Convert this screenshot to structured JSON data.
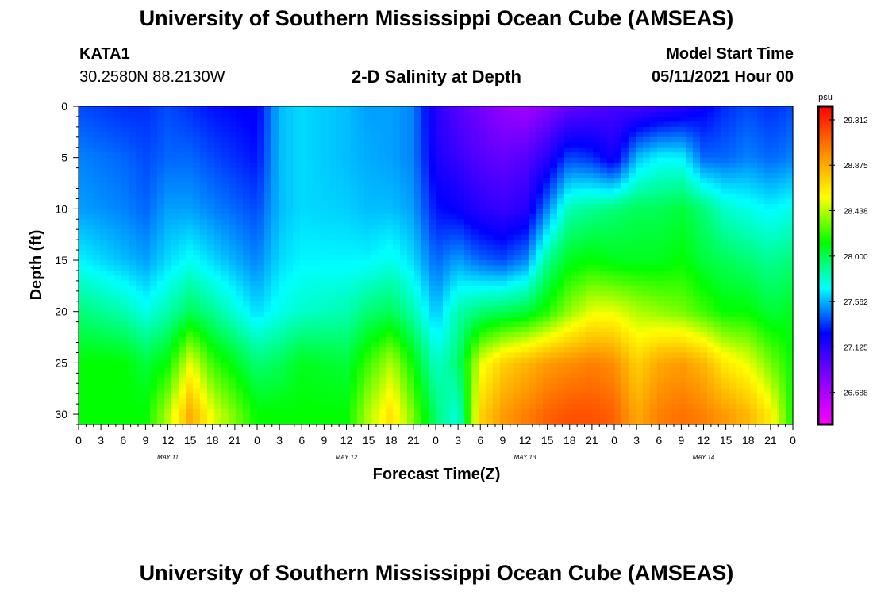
{
  "header": {
    "title": "University of Southern Mississippi Ocean Cube (AMSEAS)",
    "station_id": "KATA1",
    "coords": "30.2580N  88.2130W",
    "plot_title": "2-D Salinity at Depth",
    "model_start_label": "Model Start Time",
    "model_start_value": "05/11/2021 Hour 00"
  },
  "footer": {
    "title": "University of Southern Mississippi Ocean Cube (AMSEAS)"
  },
  "chart_data": {
    "type": "heatmap",
    "xlabel": "Forecast Time(Z)",
    "ylabel": "Depth (ft)",
    "x_range_hours": [
      0,
      96
    ],
    "x_tick_step_hours": 3,
    "x_tick_labels": [
      "0",
      "3",
      "6",
      "9",
      "12",
      "15",
      "18",
      "21",
      "0",
      "3",
      "6",
      "9",
      "12",
      "15",
      "18",
      "21",
      "0",
      "3",
      "6",
      "9",
      "12",
      "15",
      "18",
      "21",
      "0",
      "3",
      "6",
      "9",
      "12",
      "15",
      "18",
      "21",
      "0"
    ],
    "day_labels": [
      "MAY 11",
      "MAY 12",
      "MAY 13",
      "MAY 14"
    ],
    "y_range_ft": [
      0,
      31
    ],
    "y_ticks": [
      0,
      5,
      10,
      15,
      20,
      25,
      30
    ],
    "y_inverted": true,
    "colorbar": {
      "unit": "psu",
      "min": 26.25,
      "max": 29.312,
      "tick_values": [
        29.312,
        28.875,
        28.438,
        28.0,
        27.562,
        27.125,
        26.688
      ],
      "tick_labels": [
        "29.312",
        "28.875",
        "28.438",
        "28.000",
        "27.562",
        "27.125",
        "26.688"
      ],
      "colors": [
        "#ff00ff",
        "#8800ff",
        "#0000ff",
        "#00ffff",
        "#00ff00",
        "#ffff00",
        "#ff8800",
        "#ff0000"
      ]
    },
    "field_hours": [
      0,
      6,
      9,
      12,
      15,
      18,
      24,
      27,
      30,
      36,
      39,
      42,
      45,
      48,
      51,
      54,
      57,
      60,
      63,
      66,
      69,
      72,
      75,
      78,
      81,
      84,
      87,
      90,
      93,
      96
    ],
    "field_depths_ft": [
      0,
      5,
      10,
      15,
      20,
      25,
      30
    ],
    "field_values_psu": [
      [
        27.25,
        27.35,
        27.4,
        27.55,
        27.8,
        28.0,
        28.0
      ],
      [
        27.2,
        27.3,
        27.35,
        27.45,
        27.7,
        28.0,
        28.0
      ],
      [
        27.2,
        27.25,
        27.3,
        27.4,
        27.6,
        27.9,
        28.0
      ],
      [
        27.25,
        27.3,
        27.4,
        27.5,
        27.7,
        28.0,
        28.3
      ],
      [
        27.2,
        27.3,
        27.4,
        27.58,
        27.85,
        28.4,
        28.75
      ],
      [
        27.15,
        27.25,
        27.35,
        27.5,
        27.75,
        28.1,
        28.4
      ],
      [
        27.1,
        27.15,
        27.25,
        27.35,
        27.5,
        27.8,
        28.0
      ],
      [
        27.45,
        27.45,
        27.45,
        27.5,
        27.6,
        27.85,
        28.0
      ],
      [
        27.5,
        27.5,
        27.5,
        27.55,
        27.65,
        27.95,
        28.0
      ],
      [
        27.45,
        27.45,
        27.48,
        27.55,
        27.7,
        27.9,
        28.0
      ],
      [
        27.4,
        27.42,
        27.45,
        27.55,
        27.8,
        28.1,
        28.3
      ],
      [
        27.4,
        27.4,
        27.45,
        27.6,
        27.85,
        28.3,
        28.55
      ],
      [
        27.35,
        27.35,
        27.4,
        27.5,
        27.7,
        28.0,
        28.2
      ],
      [
        27.0,
        27.05,
        27.15,
        27.3,
        27.45,
        27.65,
        27.8
      ],
      [
        26.85,
        26.95,
        27.1,
        27.4,
        27.7,
        27.8,
        27.6
      ],
      [
        26.75,
        26.85,
        27.0,
        27.3,
        27.8,
        28.4,
        28.6
      ],
      [
        26.65,
        26.8,
        26.95,
        27.25,
        27.85,
        28.6,
        28.8
      ],
      [
        26.6,
        26.85,
        27.0,
        27.35,
        27.9,
        28.7,
        28.9
      ],
      [
        26.7,
        27.0,
        27.35,
        27.75,
        28.05,
        28.8,
        29.0
      ],
      [
        26.8,
        27.25,
        27.7,
        27.95,
        28.25,
        28.85,
        29.05
      ],
      [
        26.85,
        27.2,
        27.75,
        28.0,
        28.4,
        28.9,
        29.05
      ],
      [
        26.9,
        27.05,
        27.8,
        27.95,
        28.4,
        28.85,
        29.0
      ],
      [
        26.9,
        27.45,
        27.85,
        27.95,
        28.3,
        28.6,
        28.75
      ],
      [
        26.95,
        27.55,
        27.85,
        27.95,
        28.25,
        28.75,
        28.9
      ],
      [
        27.0,
        27.55,
        27.9,
        28.0,
        28.2,
        28.8,
        28.95
      ],
      [
        27.1,
        27.3,
        27.8,
        27.9,
        28.1,
        28.7,
        28.9
      ],
      [
        27.2,
        27.3,
        27.65,
        27.85,
        28.0,
        28.5,
        28.8
      ],
      [
        27.25,
        27.35,
        27.6,
        27.8,
        28.0,
        28.4,
        28.7
      ],
      [
        27.2,
        27.3,
        27.55,
        27.75,
        27.9,
        28.2,
        28.5
      ],
      [
        27.25,
        27.35,
        27.6,
        27.8,
        27.95,
        28.0,
        28.0
      ]
    ]
  }
}
